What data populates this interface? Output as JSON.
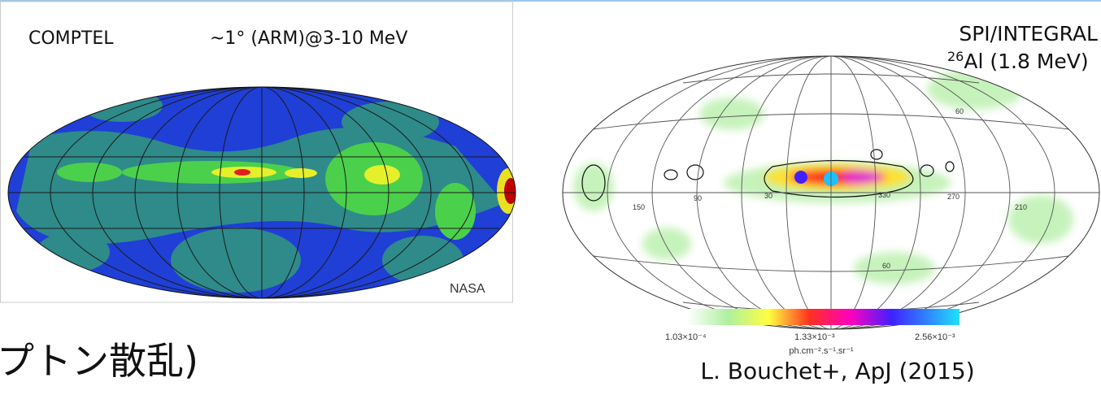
{
  "left_panel": {
    "instrument": "COMPTEL",
    "resolution": "~1°  (ARM)@3-10 MeV",
    "credit": "NASA"
  },
  "caption_fragment": "プトン散乱)",
  "right_panel": {
    "title": "SPI/INTEGRAL",
    "isotope": {
      "mass_number": "26",
      "line": "Al (1.8 MeV)"
    },
    "grid_labels": [
      "60",
      "150",
      "90",
      "30",
      "330",
      "270",
      "210",
      "60"
    ],
    "colorbar": {
      "labels": [
        "1.03×10⁻⁴",
        "1.33×10⁻³",
        "2.56×10⁻³"
      ],
      "unit": "ph.cm⁻².s⁻¹.sr⁻¹"
    },
    "citation": "L. Bouchet+, ApJ (2015)"
  }
}
